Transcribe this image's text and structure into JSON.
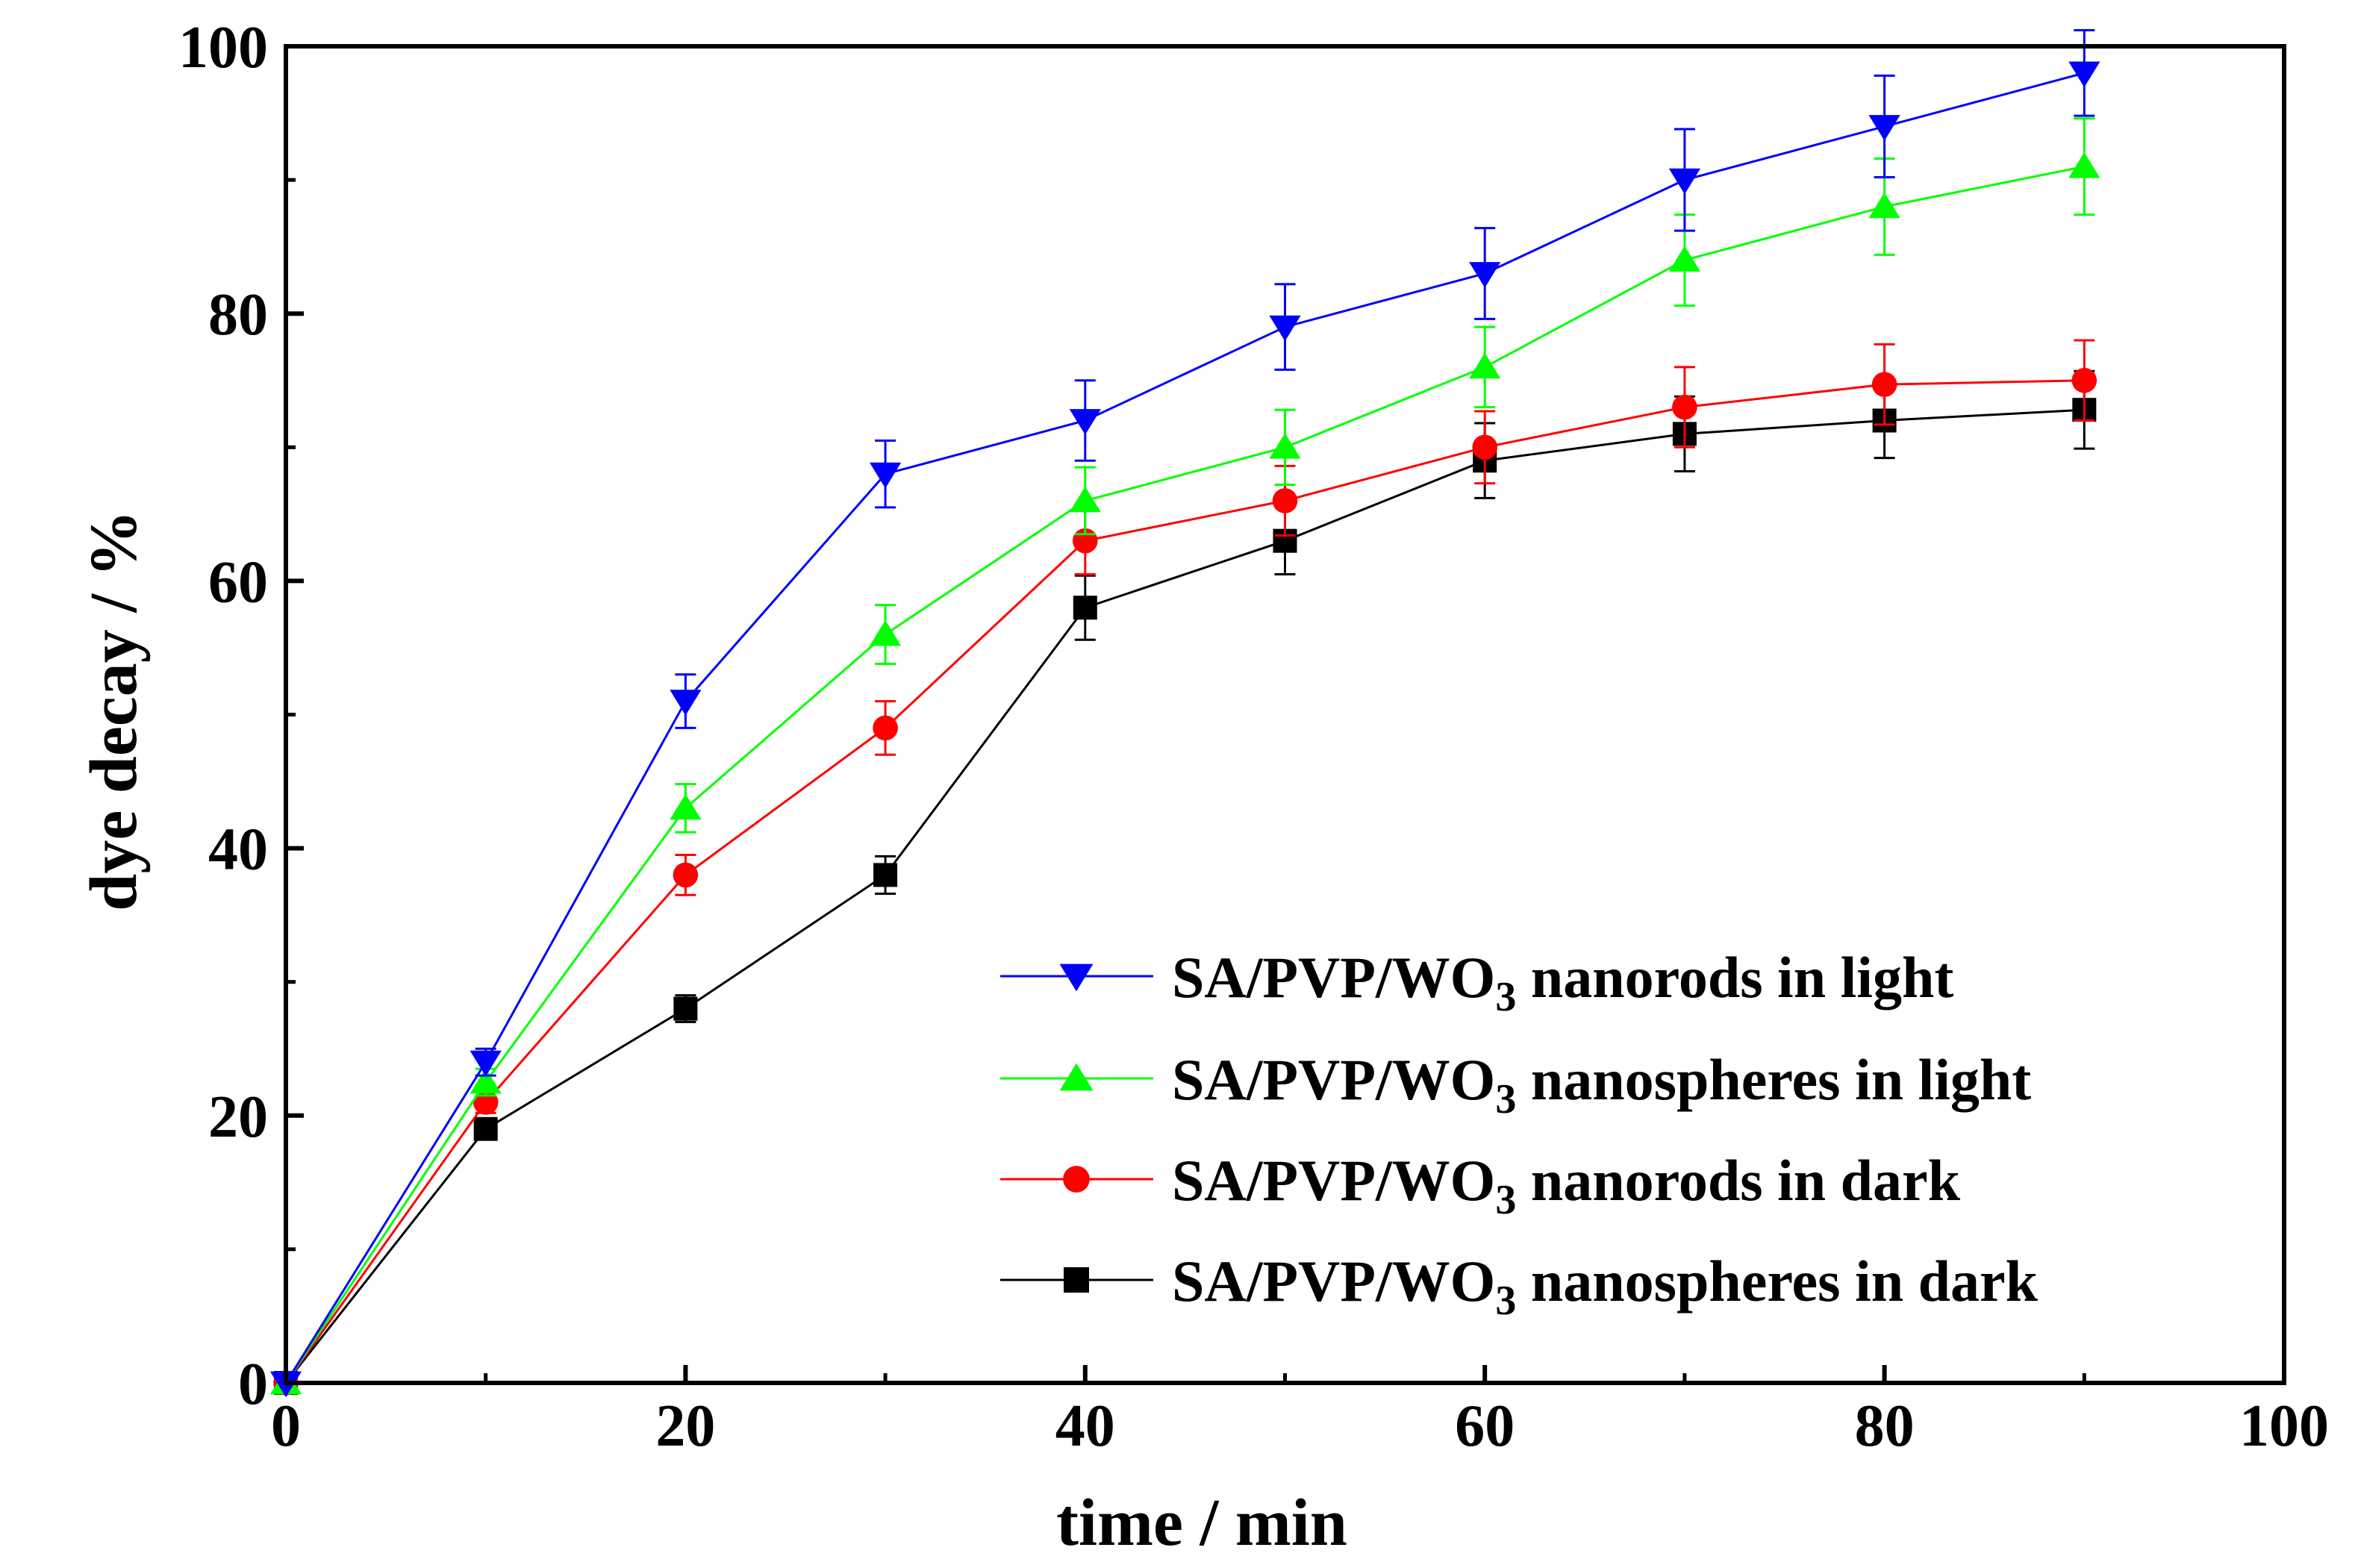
{
  "chart_data": {
    "type": "line",
    "title": "",
    "xlabel": "time / min",
    "ylabel": "dye decay / %",
    "xlim": [
      0,
      100
    ],
    "ylim": [
      0,
      100
    ],
    "x_ticks": [
      "0",
      "20",
      "40",
      "60",
      "80",
      "100"
    ],
    "y_ticks": [
      "0",
      "20",
      "40",
      "60",
      "80",
      "100"
    ],
    "legend_position": "bottom-right",
    "x": [
      0,
      10,
      20,
      30,
      40,
      50,
      60,
      70,
      80,
      90
    ],
    "series": [
      {
        "name": "SA/PVP/WO3 nanorods in light",
        "label_prefix": "SA/PVP/WO",
        "label_subscript": "3",
        "label_suffix": " nanorods in light",
        "color": "#0000ff",
        "marker": "triangle-down",
        "values": [
          0,
          24,
          51,
          68,
          72,
          79,
          83,
          90,
          94,
          98
        ],
        "errors": [
          0,
          1,
          2,
          2.5,
          3,
          3.2,
          3.4,
          3.8,
          3.8,
          3.2
        ]
      },
      {
        "name": "SA/PVP/WO3 nanospheres in light",
        "label_prefix": "SA/PVP/WO",
        "label_subscript": "3",
        "label_suffix": " nanospheres in light",
        "color": "#00ff00",
        "marker": "triangle-up",
        "values": [
          0,
          22.5,
          43,
          56,
          66,
          70,
          76,
          84,
          88,
          91
        ],
        "errors": [
          0,
          1,
          1.8,
          2.2,
          2.5,
          2.8,
          3,
          3.4,
          3.6,
          3.6
        ]
      },
      {
        "name": "SA/PVP/WO3 nanorods in dark",
        "label_prefix": "SA/PVP/WO",
        "label_subscript": "3",
        "label_suffix": " nanorods in dark",
        "color": "#ff0000",
        "marker": "circle",
        "values": [
          0,
          21,
          38,
          49,
          63,
          66,
          70,
          73,
          74.7,
          75
        ],
        "errors": [
          0,
          0.8,
          1.5,
          2,
          2.5,
          2.6,
          2.7,
          3,
          3,
          3
        ]
      },
      {
        "name": "SA/PVP/WO3 nanospheres in dark",
        "label_prefix": "SA/PVP/WO",
        "label_subscript": "3",
        "label_suffix": " nanospheres in dark",
        "color": "#000000",
        "marker": "square",
        "values": [
          0,
          19,
          28,
          38,
          58,
          63,
          69,
          71,
          72,
          72.8
        ],
        "errors": [
          0,
          0.6,
          1,
          1.4,
          2.4,
          2.5,
          2.8,
          2.8,
          2.8,
          2.9
        ]
      }
    ]
  }
}
